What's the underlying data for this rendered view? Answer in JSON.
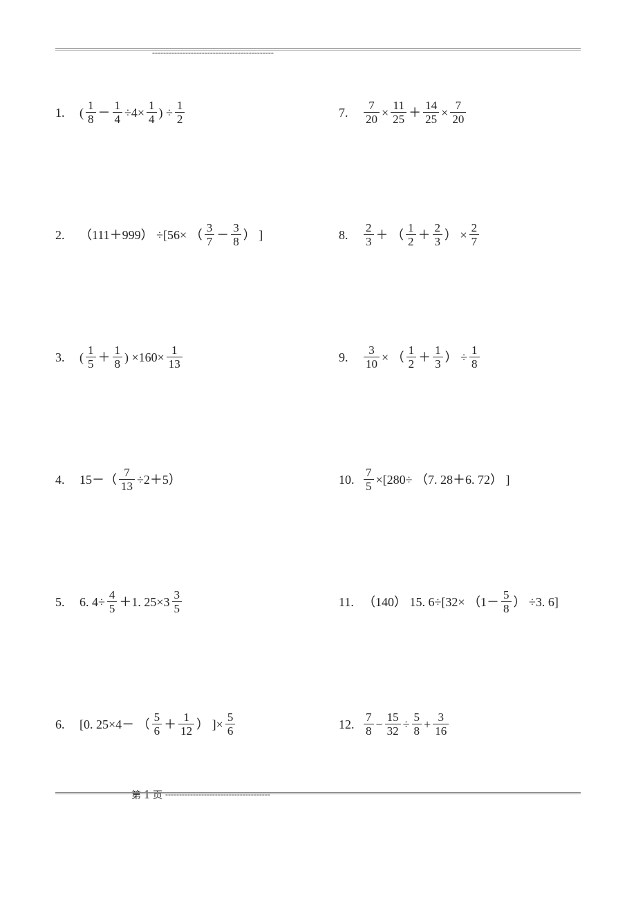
{
  "header": {
    "dashes": "--------------------------------------------"
  },
  "footer": {
    "label_prefix": "第",
    "page_number": "1",
    "label_suffix": "页",
    "dashes": "--------------------------------------"
  },
  "problems_left": [
    {
      "n": "1.",
      "tokens": [
        {
          "t": "text",
          "v": "("
        },
        {
          "t": "frac",
          "num": "1",
          "den": "8"
        },
        {
          "t": "text",
          "v": "－"
        },
        {
          "t": "frac",
          "num": "1",
          "den": "4"
        },
        {
          "t": "text",
          "v": "÷4×"
        },
        {
          "t": "frac",
          "num": "1",
          "den": "4"
        },
        {
          "t": "text",
          "v": ")  ÷"
        },
        {
          "t": "frac",
          "num": "1",
          "den": "2"
        }
      ]
    },
    {
      "n": "2.",
      "tokens": [
        {
          "t": "text",
          "v": "（111＋999） ÷[56× （"
        },
        {
          "t": "frac",
          "num": "3",
          "den": "7"
        },
        {
          "t": "text",
          "v": "－"
        },
        {
          "t": "frac",
          "num": "3",
          "den": "8"
        },
        {
          "t": "text",
          "v": "） ]"
        }
      ]
    },
    {
      "n": "3.",
      "tokens": [
        {
          "t": "text",
          "v": "("
        },
        {
          "t": "frac",
          "num": "1",
          "den": "5"
        },
        {
          "t": "text",
          "v": "＋"
        },
        {
          "t": "frac",
          "num": "1",
          "den": "8"
        },
        {
          "t": "text",
          "v": ")  ×160×"
        },
        {
          "t": "frac",
          "num": "1",
          "den": "13"
        }
      ]
    },
    {
      "n": "4.",
      "tokens": [
        {
          "t": "text",
          "v": "15－（"
        },
        {
          "t": "frac",
          "num": "7",
          "den": "13"
        },
        {
          "t": "text",
          "v": "÷2＋5）"
        }
      ]
    },
    {
      "n": "5.",
      "tokens": [
        {
          "t": "text",
          "v": "6. 4÷"
        },
        {
          "t": "frac",
          "num": "4",
          "den": "5"
        },
        {
          "t": "text",
          "v": "＋1. 25×3"
        },
        {
          "t": "frac",
          "num": "3",
          "den": "5"
        }
      ]
    },
    {
      "n": "6.",
      "tokens": [
        {
          "t": "text",
          "v": "[0. 25×4－ （"
        },
        {
          "t": "frac",
          "num": "5",
          "den": "6"
        },
        {
          "t": "text",
          "v": "＋"
        },
        {
          "t": "frac",
          "num": "1",
          "den": "12"
        },
        {
          "t": "text",
          "v": "） ]×"
        },
        {
          "t": "frac",
          "num": "5",
          "den": "6"
        }
      ]
    }
  ],
  "problems_right": [
    {
      "n": "7.",
      "tokens": [
        {
          "t": "frac",
          "num": "7",
          "den": "20"
        },
        {
          "t": "text",
          "v": "×"
        },
        {
          "t": "frac",
          "num": "11",
          "den": "25"
        },
        {
          "t": "text",
          "v": "＋"
        },
        {
          "t": "frac",
          "num": "14",
          "den": "25"
        },
        {
          "t": "text",
          "v": "×"
        },
        {
          "t": "frac",
          "num": "7",
          "den": "20"
        }
      ]
    },
    {
      "n": "8.",
      "tokens": [
        {
          "t": "frac",
          "num": "2",
          "den": "3"
        },
        {
          "t": "text",
          "v": "＋ （"
        },
        {
          "t": "frac",
          "num": "1",
          "den": "2"
        },
        {
          "t": "text",
          "v": "＋"
        },
        {
          "t": "frac",
          "num": "2",
          "den": "3"
        },
        {
          "t": "text",
          "v": "） ×"
        },
        {
          "t": "frac",
          "num": "2",
          "den": "7"
        }
      ]
    },
    {
      "n": "9.",
      "tokens": [
        {
          "t": "frac",
          "num": "3",
          "den": "10"
        },
        {
          "t": "text",
          "v": "× （"
        },
        {
          "t": "frac",
          "num": "1",
          "den": "2"
        },
        {
          "t": "text",
          "v": "＋"
        },
        {
          "t": "frac",
          "num": "1",
          "den": "3"
        },
        {
          "t": "text",
          "v": "） ÷"
        },
        {
          "t": "frac",
          "num": "1",
          "den": "8"
        }
      ]
    },
    {
      "n": "10.",
      "tokens": [
        {
          "t": "frac",
          "num": "7",
          "den": "5"
        },
        {
          "t": "text",
          "v": "×[280÷ （7. 28＋6. 72） ]"
        }
      ]
    },
    {
      "n": "11.",
      "tokens": [
        {
          "t": "text",
          "v": "（140） 15. 6÷[32× （1－"
        },
        {
          "t": "frac",
          "num": "5",
          "den": "8"
        },
        {
          "t": "text",
          "v": "） ÷3. 6]"
        }
      ]
    },
    {
      "n": "12.",
      "tokens": [
        {
          "t": "frac",
          "num": "7",
          "den": "8"
        },
        {
          "t": "text",
          "v": " − "
        },
        {
          "t": "frac",
          "num": "15",
          "den": "32"
        },
        {
          "t": "text",
          "v": " ÷ "
        },
        {
          "t": "frac",
          "num": "5",
          "den": "8"
        },
        {
          "t": "text",
          "v": " + "
        },
        {
          "t": "frac",
          "num": "3",
          "den": "16"
        }
      ]
    }
  ]
}
